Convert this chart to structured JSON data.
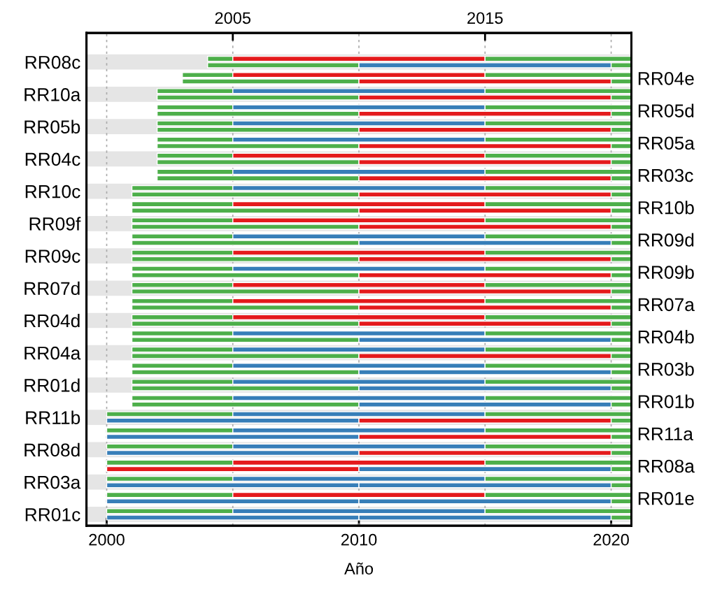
{
  "chart_data": {
    "type": "bar",
    "orientation": "horizontal",
    "xlabel": "Año",
    "categories": [
      "RR08c",
      "RR04e",
      "RR10a",
      "RR05d",
      "RR05b",
      "RR05a",
      "RR04c",
      "RR03c",
      "RR10c",
      "RR10b",
      "RR09f",
      "RR09d",
      "RR09c",
      "RR09b",
      "RR07d",
      "RR07a",
      "RR04d",
      "RR04b",
      "RR04a",
      "RR03b",
      "RR01d",
      "RR01b",
      "RR11b",
      "RR11a",
      "RR08d",
      "RR08a",
      "RR03a",
      "RR01e",
      "RR01c"
    ],
    "xlim": [
      1999.2,
      2020.8
    ],
    "xticks": [
      2000,
      2010,
      2020
    ],
    "x2lim": [
      1999.2,
      2020.8
    ],
    "x2ticks": [
      2005,
      2015
    ],
    "grid": "x",
    "legend": false,
    "series": [
      {
        "color": "#4daf4a",
        "base": [
          2004,
          2003,
          2002,
          2002,
          2002,
          2002,
          2002,
          2002,
          2001,
          2001,
          2001,
          2001,
          2001,
          2001,
          2001,
          2001,
          2001,
          2001,
          2001,
          2001,
          2001,
          2001,
          2000,
          2000,
          2000,
          2000,
          2000,
          2000,
          2000
        ],
        "values": [
          1,
          2,
          3,
          3,
          3,
          3,
          3,
          3,
          4,
          4,
          4,
          4,
          4,
          4,
          4,
          4,
          4,
          4,
          4,
          4,
          4,
          4,
          5,
          5,
          5,
          5,
          5,
          5,
          5
        ]
      },
      {
        "colors": [
          "#e41a1c",
          "#e41a1c",
          "#377eb8",
          "#377eb8",
          "#377eb8",
          "#377eb8",
          "#e41a1c",
          "#377eb8",
          "#377eb8",
          "#e41a1c",
          "#e41a1c",
          "#377eb8",
          "#e41a1c",
          "#377eb8",
          "#e41a1c",
          "#e41a1c",
          "#e41a1c",
          "#377eb8",
          "#377eb8",
          "#377eb8",
          "#377eb8",
          "#377eb8",
          "#377eb8",
          "#377eb8",
          "#377eb8",
          "#e41a1c",
          "#377eb8",
          "#e41a1c",
          "#377eb8"
        ],
        "base": [
          2005,
          2005,
          2005,
          2005,
          2005,
          2005,
          2005,
          2005,
          2005,
          2005,
          2005,
          2005,
          2005,
          2005,
          2005,
          2005,
          2005,
          2005,
          2005,
          2005,
          2005,
          2005,
          2005,
          2005,
          2005,
          2005,
          2005,
          2005,
          2005
        ],
        "values": [
          10,
          10,
          10,
          10,
          10,
          10,
          10,
          10,
          10,
          10,
          10,
          10,
          10,
          10,
          10,
          10,
          10,
          10,
          10,
          10,
          10,
          10,
          10,
          10,
          10,
          10,
          10,
          10,
          10
        ]
      },
      {
        "color": "#4daf4a",
        "base": [
          2015,
          2015,
          2015,
          2015,
          2015,
          2015,
          2015,
          2015,
          2015,
          2015,
          2015,
          2015,
          2015,
          2015,
          2015,
          2015,
          2015,
          2015,
          2015,
          2015,
          2015,
          2015,
          2015,
          2015,
          2015,
          2015,
          2015,
          2015,
          2015
        ],
        "values": [
          5.8,
          5.8,
          5.8,
          5.8,
          5.8,
          5.8,
          5.8,
          5.8,
          5.8,
          5.8,
          5.8,
          5.8,
          5.8,
          5.8,
          5.8,
          5.8,
          5.8,
          5.8,
          5.8,
          5.8,
          5.8,
          5.8,
          5.8,
          5.8,
          5.8,
          5.8,
          5.8,
          5.8,
          5.8
        ]
      },
      {
        "colors": [
          "#4daf4a",
          "#4daf4a",
          "#4daf4a",
          "#4daf4a",
          "#4daf4a",
          "#4daf4a",
          "#4daf4a",
          "#4daf4a",
          "#4daf4a",
          "#4daf4a",
          "#4daf4a",
          "#4daf4a",
          "#4daf4a",
          "#4daf4a",
          "#4daf4a",
          "#4daf4a",
          "#4daf4a",
          "#4daf4a",
          "#4daf4a",
          "#4daf4a",
          "#4daf4a",
          "#4daf4a",
          "#377eb8",
          "#377eb8",
          "#377eb8",
          "#e41a1c",
          "#377eb8",
          "#377eb8",
          "#377eb8"
        ],
        "base": [
          2004,
          2003,
          2002,
          2002,
          2002,
          2002,
          2002,
          2002,
          2001,
          2001,
          2001,
          2001,
          2001,
          2001,
          2001,
          2001,
          2001,
          2001,
          2001,
          2001,
          2001,
          2001,
          2000,
          2000,
          2000,
          2000,
          2000,
          2000,
          2000
        ],
        "values": [
          6,
          7,
          8,
          8,
          8,
          8,
          8,
          8,
          9,
          9,
          9,
          9,
          9,
          9,
          9,
          9,
          9,
          9,
          9,
          9,
          9,
          9,
          10,
          10,
          10,
          10,
          10,
          10,
          10
        ]
      },
      {
        "colors": [
          "#377eb8",
          "#e41a1c",
          "#e41a1c",
          "#e41a1c",
          "#e41a1c",
          "#e41a1c",
          "#e41a1c",
          "#e41a1c",
          "#e41a1c",
          "#e41a1c",
          "#e41a1c",
          "#377eb8",
          "#e41a1c",
          "#e41a1c",
          "#e41a1c",
          "#e41a1c",
          "#e41a1c",
          "#377eb8",
          "#e41a1c",
          "#377eb8",
          "#377eb8",
          "#377eb8",
          "#e41a1c",
          "#e41a1c",
          "#e41a1c",
          "#377eb8",
          "#377eb8",
          "#377eb8",
          "#377eb8"
        ],
        "base": [
          2010,
          2010,
          2010,
          2010,
          2010,
          2010,
          2010,
          2010,
          2010,
          2010,
          2010,
          2010,
          2010,
          2010,
          2010,
          2010,
          2010,
          2010,
          2010,
          2010,
          2010,
          2010,
          2010,
          2010,
          2010,
          2010,
          2010,
          2010,
          2010
        ],
        "values": [
          10,
          10,
          10,
          10,
          10,
          10,
          10,
          10,
          10,
          10,
          10,
          10,
          10,
          10,
          10,
          10,
          10,
          10,
          10,
          10,
          10,
          10,
          10,
          10,
          10,
          10,
          10,
          10,
          10
        ]
      },
      {
        "color": "#4daf4a",
        "base": [
          2020,
          2020,
          2020,
          2020,
          2020,
          2020,
          2020,
          2020,
          2020,
          2020,
          2020,
          2020,
          2020,
          2020,
          2020,
          2020,
          2020,
          2020,
          2020,
          2020,
          2020,
          2020,
          2020,
          2020,
          2020,
          2020,
          2020,
          2020,
          2020
        ],
        "values": [
          0.8,
          0.8,
          0.8,
          0.8,
          0.8,
          0.8,
          0.8,
          0.8,
          0.8,
          0.8,
          0.8,
          0.8,
          0.8,
          0.8,
          0.8,
          0.8,
          0.8,
          0.8,
          0.8,
          0.8,
          0.8,
          0.8,
          0.8,
          0.8,
          0.8,
          0.8,
          0.8,
          0.8,
          0.8
        ]
      }
    ]
  }
}
